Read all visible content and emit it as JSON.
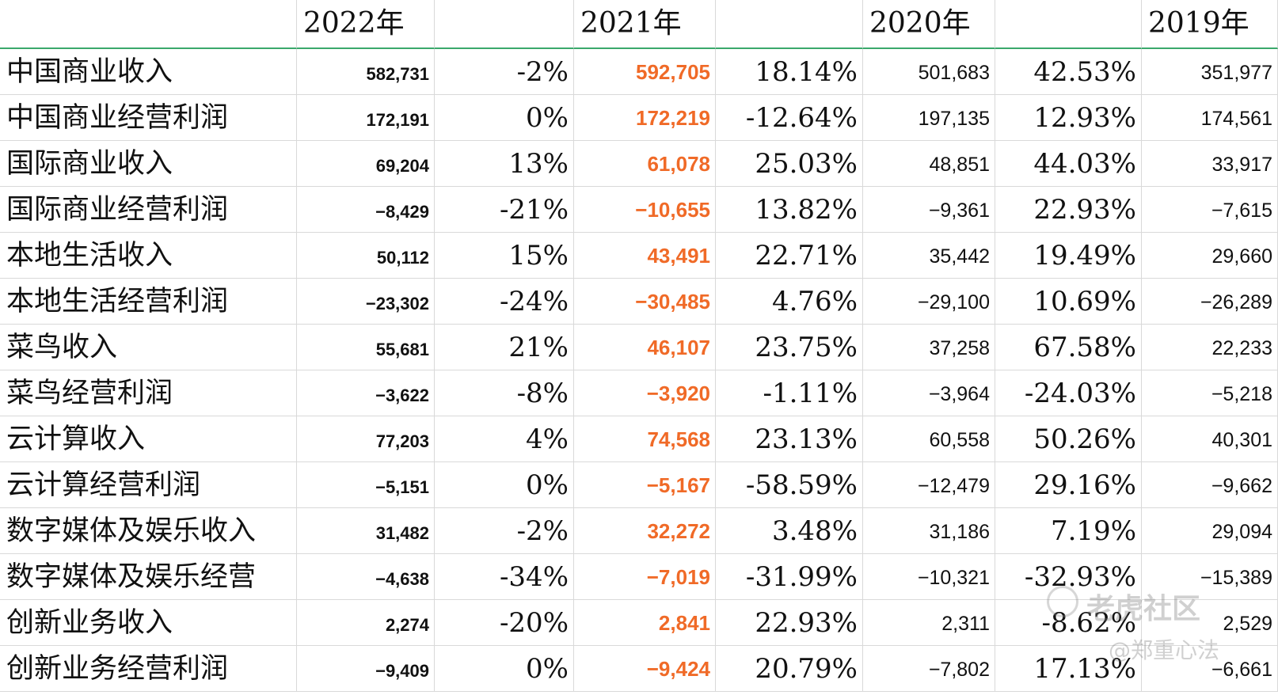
{
  "headers": [
    "",
    "2022年",
    "",
    "2021年",
    "",
    "2020年",
    "",
    "2019年"
  ],
  "rows": [
    {
      "label": "中国商业收入",
      "v2022": "582,731",
      "g2022": "-2%",
      "v2021": "592,705",
      "g2021": "18.14%",
      "v2020": "501,683",
      "g2020": "42.53%",
      "v2019": "351,977"
    },
    {
      "label": "中国商业经营利润",
      "v2022": "172,191",
      "g2022": "0%",
      "v2021": "172,219",
      "g2021": "-12.64%",
      "v2020": "197,135",
      "g2020": "12.93%",
      "v2019": "174,561"
    },
    {
      "label": "国际商业收入",
      "v2022": "69,204",
      "g2022": "13%",
      "v2021": "61,078",
      "g2021": "25.03%",
      "v2020": "48,851",
      "g2020": "44.03%",
      "v2019": "33,917"
    },
    {
      "label": "国际商业经营利润",
      "v2022": "−8,429",
      "g2022": "-21%",
      "v2021": "−10,655",
      "g2021": "13.82%",
      "v2020": "−9,361",
      "g2020": "22.93%",
      "v2019": "−7,615"
    },
    {
      "label": "本地生活收入",
      "v2022": "50,112",
      "g2022": "15%",
      "v2021": "43,491",
      "g2021": "22.71%",
      "v2020": "35,442",
      "g2020": "19.49%",
      "v2019": "29,660"
    },
    {
      "label": "本地生活经营利润",
      "v2022": "−23,302",
      "g2022": "-24%",
      "v2021": "−30,485",
      "g2021": "4.76%",
      "v2020": "−29,100",
      "g2020": "10.69%",
      "v2019": "−26,289"
    },
    {
      "label": "菜鸟收入",
      "v2022": "55,681",
      "g2022": "21%",
      "v2021": "46,107",
      "g2021": "23.75%",
      "v2020": "37,258",
      "g2020": "67.58%",
      "v2019": "22,233"
    },
    {
      "label": "菜鸟经营利润",
      "v2022": "−3,622",
      "g2022": "-8%",
      "v2021": "−3,920",
      "g2021": "-1.11%",
      "v2020": "−3,964",
      "g2020": "-24.03%",
      "v2019": "−5,218"
    },
    {
      "label": "云计算收入",
      "v2022": "77,203",
      "g2022": "4%",
      "v2021": "74,568",
      "g2021": "23.13%",
      "v2020": "60,558",
      "g2020": "50.26%",
      "v2019": "40,301"
    },
    {
      "label": "云计算经营利润",
      "v2022": "−5,151",
      "g2022": "0%",
      "v2021": "−5,167",
      "g2021": "-58.59%",
      "v2020": "−12,479",
      "g2020": "29.16%",
      "v2019": "−9,662"
    },
    {
      "label": "数字媒体及娱乐收入",
      "v2022": "31,482",
      "g2022": "-2%",
      "v2021": "32,272",
      "g2021": "3.48%",
      "v2020": "31,186",
      "g2020": "7.19%",
      "v2019": "29,094"
    },
    {
      "label": "数字媒体及娱乐经营",
      "v2022": "−4,638",
      "g2022": "-34%",
      "v2021": "−7,019",
      "g2021": "-31.99%",
      "v2020": "−10,321",
      "g2020": "-32.93%",
      "v2019": "−15,389"
    },
    {
      "label": "创新业务收入",
      "v2022": "2,274",
      "g2022": "-20%",
      "v2021": "2,841",
      "g2021": "22.93%",
      "v2020": "2,311",
      "g2020": "-8.62%",
      "v2019": "2,529"
    },
    {
      "label": "创新业务经营利润",
      "v2022": "−9,409",
      "g2022": "0%",
      "v2021": "−9,424",
      "g2021": "20.79%",
      "v2020": "−7,802",
      "g2020": "17.13%",
      "v2019": "−6,661"
    }
  ],
  "watermark": {
    "brand": "老虎社区",
    "user": "@郑重心法"
  },
  "colors": {
    "accent_header_line": "#3aa86b",
    "highlight_2021": "#f06a27"
  }
}
